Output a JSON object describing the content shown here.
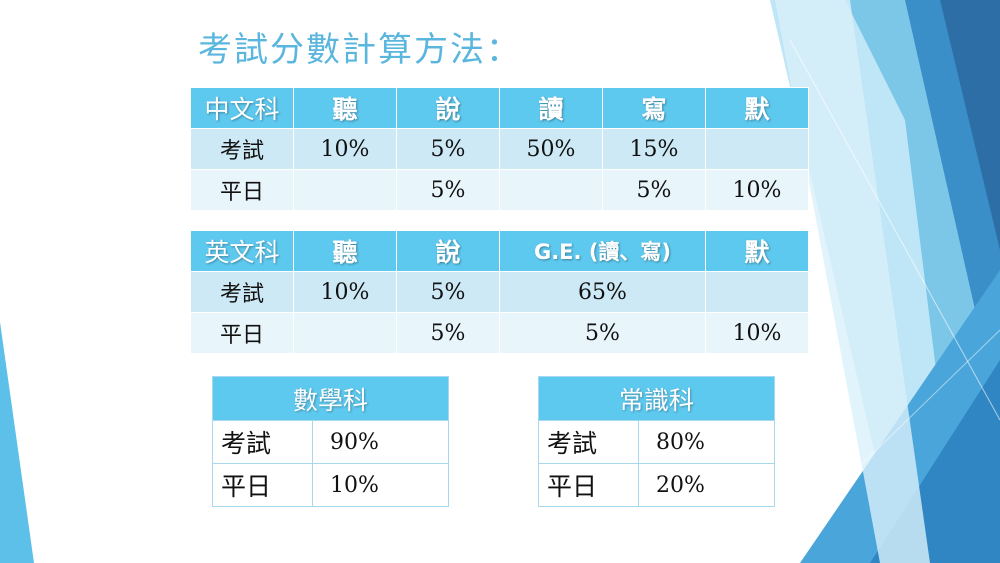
{
  "title": "考試分數計算方法：",
  "chinese": {
    "header": [
      "中文科",
      "聽",
      "說",
      "讀",
      "寫",
      "默"
    ],
    "exam": [
      "考試",
      "10%",
      "5%",
      "50%",
      "15%",
      ""
    ],
    "daily": [
      "平日",
      "",
      "5%",
      "",
      "5%",
      "10%"
    ]
  },
  "english": {
    "header": [
      "英文科",
      "聽",
      "說",
      "G.E. (讀、寫)",
      "默"
    ],
    "exam": [
      "考試",
      "10%",
      "5%",
      "65%",
      ""
    ],
    "daily": [
      "平日",
      "",
      "5%",
      "5%",
      "10%"
    ]
  },
  "math": {
    "header": "數學科",
    "rows": [
      {
        "label": "考試",
        "value": "90%"
      },
      {
        "label": "平日",
        "value": "10%"
      }
    ]
  },
  "general": {
    "header": "常識科",
    "rows": [
      {
        "label": "考試",
        "value": "80%"
      },
      {
        "label": "平日",
        "value": "20%"
      }
    ]
  }
}
